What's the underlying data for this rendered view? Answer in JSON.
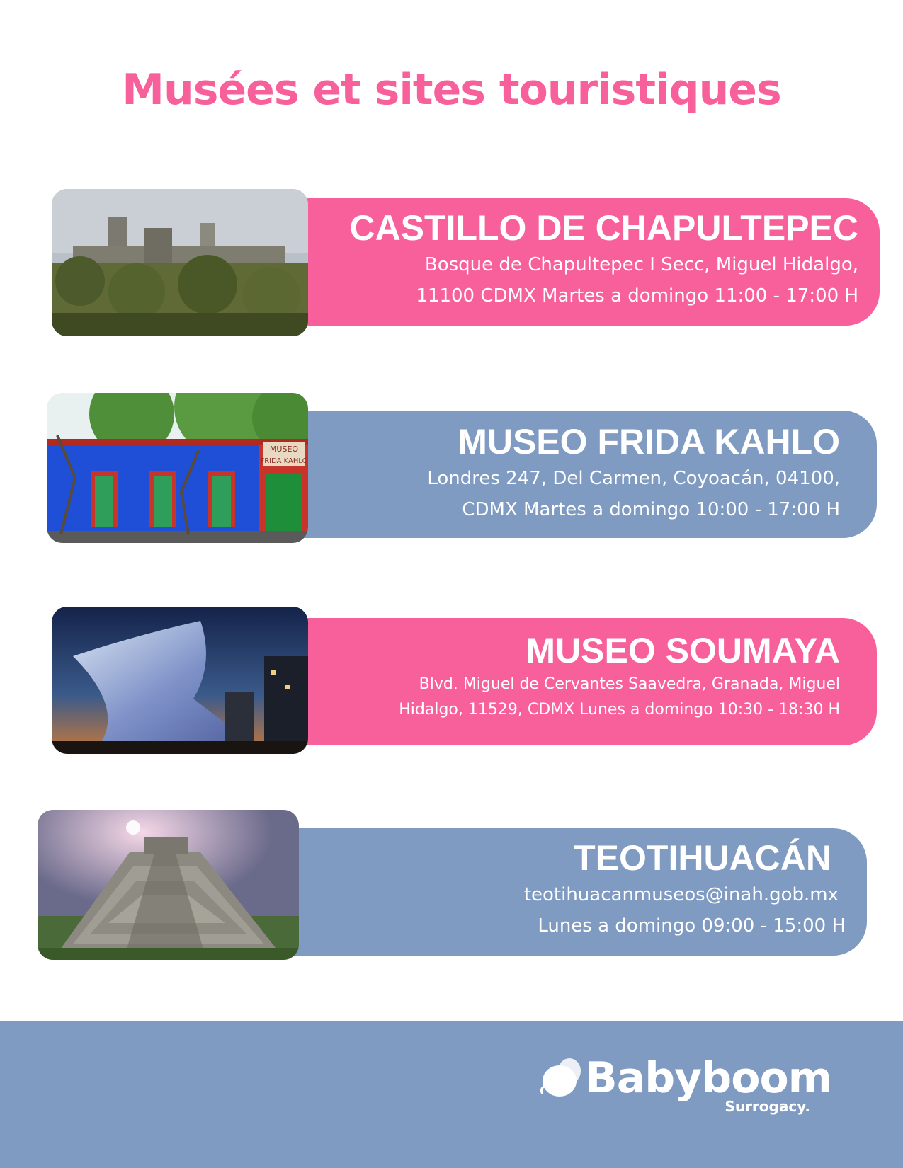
{
  "page": {
    "title": "Musées et sites touristiques"
  },
  "colors": {
    "pink": "#f7609a",
    "blue": "#7f9bc2",
    "title_pink": "#f7609a",
    "footer_blue": "#7f9bc2"
  },
  "sites": [
    {
      "name": "CASTILLO DE CHAPULTEPEC",
      "address_line1": "Bosque de Chapultepec I Secc, Miguel Hidalgo,",
      "address_line2": "11100 CDMX Martes a domingo 11:00 - 17:00 H",
      "color": "pink",
      "photo_icon": "castle-photo-icon"
    },
    {
      "name": "MUSEO FRIDA KAHLO",
      "address_line1": "Londres 247, Del Carmen, Coyoacán, 04100,",
      "address_line2": "CDMX Martes a domingo 10:00 - 17:00 H",
      "color": "blue",
      "photo_icon": "blue-house-photo-icon",
      "photo_sign": [
        "MUSEO",
        "FRIDA KAHLO"
      ]
    },
    {
      "name": "MUSEO SOUMAYA",
      "address_line1": "Blvd. Miguel de Cervantes Saavedra, Granada, Miguel",
      "address_line2": "Hidalgo, 11529, CDMX Lunes a domingo 10:30 - 18:30 H",
      "color": "pink",
      "photo_icon": "museum-building-photo-icon"
    },
    {
      "name": "TEOTIHUACÁN",
      "address_line1": "teotihuacanmuseos@inah.gob.mx",
      "address_line2": "Lunes a domingo 09:00 - 15:00 H",
      "color": "blue",
      "photo_icon": "pyramid-photo-icon"
    }
  ],
  "footer": {
    "brand": "Babyboom",
    "brand_sub": "Surrogacy.",
    "logo_icon": "babyboom-logo-icon"
  }
}
